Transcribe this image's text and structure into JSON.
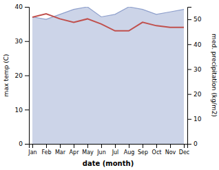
{
  "chart_data": {
    "type": "line",
    "categories": [
      "Jan",
      "Feb",
      "Mar",
      "Apr",
      "May",
      "Jun",
      "Jul",
      "Aug",
      "Sep",
      "Oct",
      "Nov",
      "Dec"
    ],
    "xlabel": "date (month)",
    "ylabel": "max temp (C)",
    "y2label": "med. precipitation (kg/m2)",
    "series": [
      {
        "type": "area",
        "axis": "y2",
        "color": "#8fa0cc",
        "values": [
          51,
          50,
          52,
          54,
          55,
          51,
          52,
          55,
          54,
          52,
          53,
          54
        ]
      },
      {
        "type": "line",
        "color": "#c0504d",
        "values": [
          37.0,
          38.0,
          36.5,
          35.5,
          36.5,
          35.0,
          33.0,
          33.0,
          35.5,
          34.5,
          34.0,
          34.0
        ]
      }
    ],
    "ylim": [
      0,
      40
    ],
    "yticks": [
      0,
      10,
      20,
      30,
      40
    ],
    "y2lim": [
      0,
      55
    ],
    "y2ticks": [
      0,
      10,
      20,
      30,
      40,
      50
    ]
  }
}
